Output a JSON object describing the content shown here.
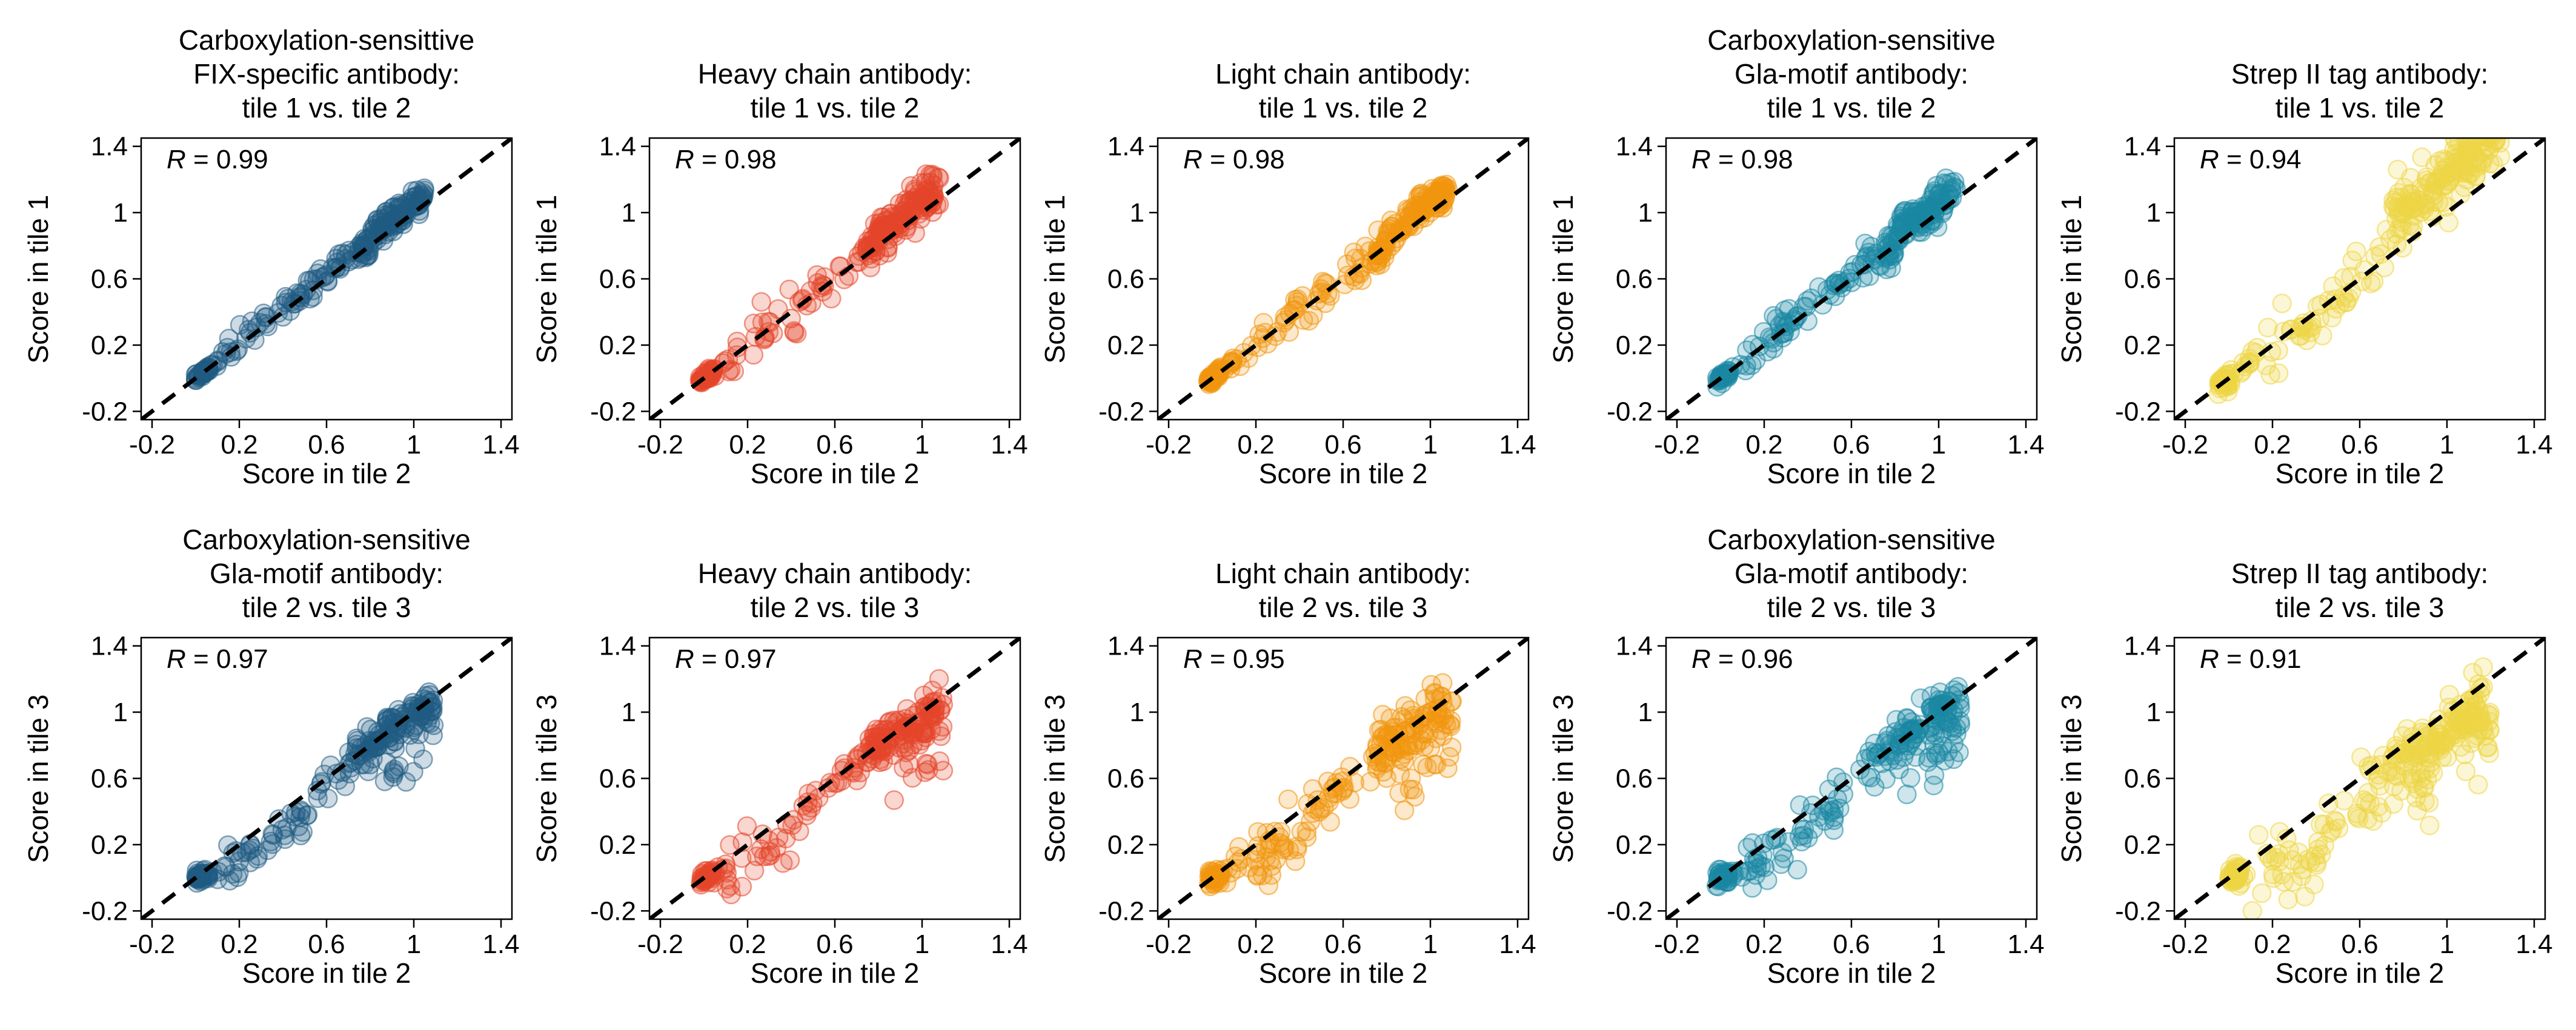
{
  "figure": {
    "background": "#ffffff",
    "diagonal_color": "#000000"
  },
  "chart_data": [
    {
      "type": "scatter",
      "title": "Carboxylation-sensittive\nFIX-specific antibody:\ntile 1 vs. tile 2",
      "xlabel": "Score in tile 2",
      "ylabel": "Score in tile 1",
      "r_label": "R",
      "r_value": "= 0.99",
      "xlim": [
        -0.25,
        1.45
      ],
      "ylim": [
        -0.25,
        1.45
      ],
      "xticks": [
        "-0.2",
        "0.2",
        "0.6",
        "1",
        "1.4"
      ],
      "yticks": [
        "-0.2",
        "0.2",
        "0.6",
        "1",
        "1.4"
      ],
      "color": "#1f5b82",
      "pattern": "a",
      "n": 230,
      "seed": 11,
      "x_min": 0.0,
      "x_max": 1.05,
      "noise": 0.04
    },
    {
      "type": "scatter",
      "title": "Heavy chain antibody:\ntile 1 vs. tile 2",
      "xlabel": "Score in tile 2",
      "ylabel": "Score in tile 1",
      "r_label": "R",
      "r_value": "= 0.98",
      "xlim": [
        -0.25,
        1.45
      ],
      "ylim": [
        -0.25,
        1.45
      ],
      "xticks": [
        "-0.2",
        "0.2",
        "0.6",
        "1",
        "1.4"
      ],
      "yticks": [
        "-0.2",
        "0.2",
        "0.6",
        "1",
        "1.4"
      ],
      "color": "#e5452a",
      "pattern": "a",
      "n": 230,
      "seed": 23,
      "x_min": -0.02,
      "x_max": 1.08,
      "noise": 0.06
    },
    {
      "type": "scatter",
      "title": "Light chain antibody:\ntile 1 vs. tile 2",
      "xlabel": "Score in tile 2",
      "ylabel": "Score in tile 1",
      "r_label": "R",
      "r_value": "= 0.98",
      "xlim": [
        -0.25,
        1.45
      ],
      "ylim": [
        -0.25,
        1.45
      ],
      "xticks": [
        "-0.2",
        "0.2",
        "0.6",
        "1",
        "1.4"
      ],
      "yticks": [
        "-0.2",
        "0.2",
        "0.6",
        "1",
        "1.4"
      ],
      "color": "#f0960e",
      "pattern": "a",
      "n": 230,
      "seed": 37,
      "x_min": -0.02,
      "x_max": 1.08,
      "noise": 0.05
    },
    {
      "type": "scatter",
      "title": "Carboxylation-sensitive\nGla-motif antibody:\ntile 1 vs. tile 2",
      "xlabel": "Score in tile 2",
      "ylabel": "Score in tile 1",
      "r_label": "R",
      "r_value": "= 0.98",
      "xlim": [
        -0.25,
        1.45
      ],
      "ylim": [
        -0.25,
        1.45
      ],
      "xticks": [
        "-0.2",
        "0.2",
        "0.6",
        "1",
        "1.4"
      ],
      "yticks": [
        "-0.2",
        "0.2",
        "0.6",
        "1",
        "1.4"
      ],
      "color": "#1a87a3",
      "pattern": "a",
      "n": 230,
      "seed": 41,
      "x_min": -0.02,
      "x_max": 1.08,
      "noise": 0.05
    },
    {
      "type": "scatter",
      "title": "Strep II tag antibody:\ntile 1 vs. tile 2",
      "xlabel": "Score in tile 2",
      "ylabel": "Score in tile 1",
      "r_label": "R",
      "r_value": "= 0.94",
      "xlim": [
        -0.25,
        1.45
      ],
      "ylim": [
        -0.25,
        1.45
      ],
      "xticks": [
        "-0.2",
        "0.2",
        "0.6",
        "1",
        "1.4"
      ],
      "yticks": [
        "-0.2",
        "0.2",
        "0.6",
        "1",
        "1.4"
      ],
      "color": "#efd645",
      "pattern": "c",
      "n": 260,
      "seed": 53,
      "x_min": -0.05,
      "x_max": 1.25,
      "noise": 0.09
    },
    {
      "type": "scatter",
      "title": "Carboxylation-sensitive\nGla-motif antibody:\ntile 2 vs. tile 3",
      "xlabel": "Score in tile 2",
      "ylabel": "Score in tile 3",
      "r_label": "R",
      "r_value": "= 0.97",
      "xlim": [
        -0.25,
        1.45
      ],
      "ylim": [
        -0.25,
        1.45
      ],
      "xticks": [
        "-0.2",
        "0.2",
        "0.6",
        "1",
        "1.4"
      ],
      "yticks": [
        "-0.2",
        "0.2",
        "0.6",
        "1",
        "1.4"
      ],
      "color": "#1f5b82",
      "pattern": "b",
      "n": 220,
      "seed": 61,
      "x_min": 0.0,
      "x_max": 1.1,
      "noise": 0.06
    },
    {
      "type": "scatter",
      "title": "Heavy chain antibody:\ntile 2 vs. tile 3",
      "xlabel": "Score in tile 2",
      "ylabel": "Score in tile 3",
      "r_label": "R",
      "r_value": "= 0.97",
      "xlim": [
        -0.25,
        1.45
      ],
      "ylim": [
        -0.25,
        1.45
      ],
      "xticks": [
        "-0.2",
        "0.2",
        "0.6",
        "1",
        "1.4"
      ],
      "yticks": [
        "-0.2",
        "0.2",
        "0.6",
        "1",
        "1.4"
      ],
      "color": "#e5452a",
      "pattern": "b",
      "n": 220,
      "seed": 71,
      "x_min": -0.02,
      "x_max": 1.1,
      "noise": 0.07
    },
    {
      "type": "scatter",
      "title": "Light chain antibody:\ntile 2 vs. tile 3",
      "xlabel": "Score in tile 2",
      "ylabel": "Score in tile 3",
      "r_label": "R",
      "r_value": "= 0.95",
      "xlim": [
        -0.25,
        1.45
      ],
      "ylim": [
        -0.25,
        1.45
      ],
      "xticks": [
        "-0.2",
        "0.2",
        "0.6",
        "1",
        "1.4"
      ],
      "yticks": [
        "-0.2",
        "0.2",
        "0.6",
        "1",
        "1.4"
      ],
      "color": "#f0960e",
      "pattern": "b",
      "n": 220,
      "seed": 83,
      "x_min": -0.02,
      "x_max": 1.1,
      "noise": 0.08
    },
    {
      "type": "scatter",
      "title": "Carboxylation-sensitive\nGla-motif antibody:\ntile 2 vs. tile 3",
      "xlabel": "Score in tile 2",
      "ylabel": "Score in tile 3",
      "r_label": "R",
      "r_value": "= 0.96",
      "xlim": [
        -0.25,
        1.45
      ],
      "ylim": [
        -0.25,
        1.45
      ],
      "xticks": [
        "-0.2",
        "0.2",
        "0.6",
        "1",
        "1.4"
      ],
      "yticks": [
        "-0.2",
        "0.2",
        "0.6",
        "1",
        "1.4"
      ],
      "color": "#1a87a3",
      "pattern": "b",
      "n": 220,
      "seed": 97,
      "x_min": -0.02,
      "x_max": 1.1,
      "noise": 0.08
    },
    {
      "type": "scatter",
      "title": "Strep II tag antibody:\ntile 2 vs. tile 3",
      "xlabel": "Score in tile 2",
      "ylabel": "Score in tile 3",
      "r_label": "R",
      "r_value": "= 0.91",
      "xlim": [
        -0.25,
        1.45
      ],
      "ylim": [
        -0.25,
        1.45
      ],
      "xticks": [
        "-0.2",
        "0.2",
        "0.6",
        "1",
        "1.4"
      ],
      "yticks": [
        "-0.2",
        "0.2",
        "0.6",
        "1",
        "1.4"
      ],
      "color": "#efd645",
      "pattern": "d",
      "n": 260,
      "seed": 101,
      "x_min": 0.0,
      "x_max": 1.2,
      "noise": 0.1
    }
  ]
}
